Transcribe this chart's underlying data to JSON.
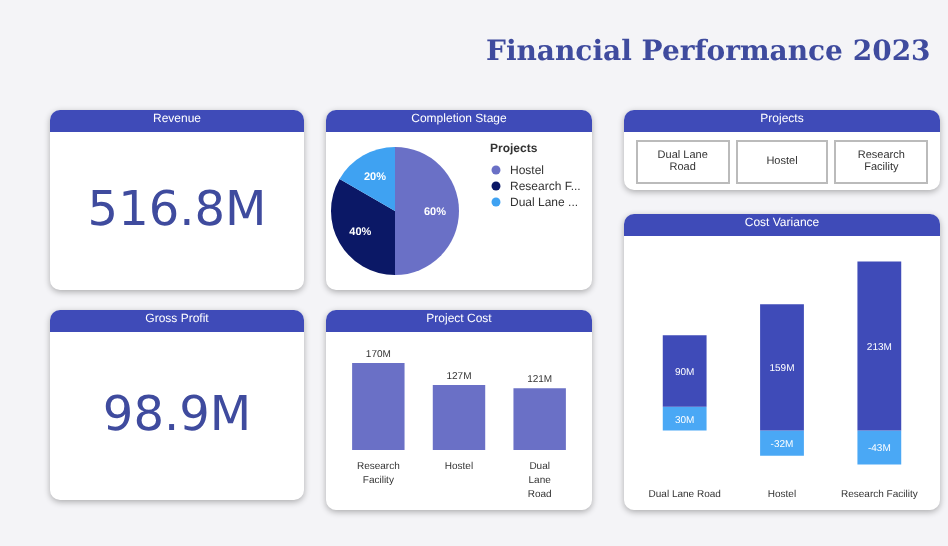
{
  "chart_data": [
    {
      "type": "other",
      "title": "Financial Performance 2023"
    },
    {
      "type": "other",
      "title": "Revenue",
      "annotations": [
        "516.8M"
      ]
    },
    {
      "type": "pie",
      "title": "Completion Stage",
      "legend_title": "Projects",
      "legend": "right",
      "categories": [
        "Hostel",
        "Research F...",
        "Dual Lane ..."
      ],
      "values": [
        60,
        40,
        20
      ],
      "value_labels": [
        "60%",
        "40%",
        "20%"
      ],
      "colors": [
        "#6a70c6",
        "#0b1866",
        "#3fa2f2"
      ]
    },
    {
      "type": "other",
      "title": "Projects",
      "annotations": [
        "Dual Lane Road",
        "Hostel",
        "Research Facility"
      ]
    },
    {
      "type": "other",
      "title": "Gross Profit",
      "annotations": [
        "98.9M"
      ]
    },
    {
      "type": "bar",
      "title": "Project Cost",
      "categories": [
        "Research Facility",
        "Hostel",
        "Dual Lane Road"
      ],
      "values": [
        170,
        127,
        121
      ],
      "value_labels": [
        "170M",
        "127M",
        "121M"
      ],
      "color": "#6a70c6"
    },
    {
      "type": "bar",
      "title": "Cost Variance",
      "stacked": true,
      "categories": [
        "Dual Lane Road",
        "Hostel",
        "Research Facility"
      ],
      "series": [
        {
          "color": "#4aa8f5",
          "values": [
            30,
            -32,
            -43
          ],
          "value_labels": [
            "30M",
            "-32M",
            "-43M"
          ]
        },
        {
          "color": "#3f4bb8",
          "values": [
            90,
            159,
            213
          ],
          "value_labels": [
            "90M",
            "159M",
            "213M"
          ]
        }
      ]
    }
  ]
}
